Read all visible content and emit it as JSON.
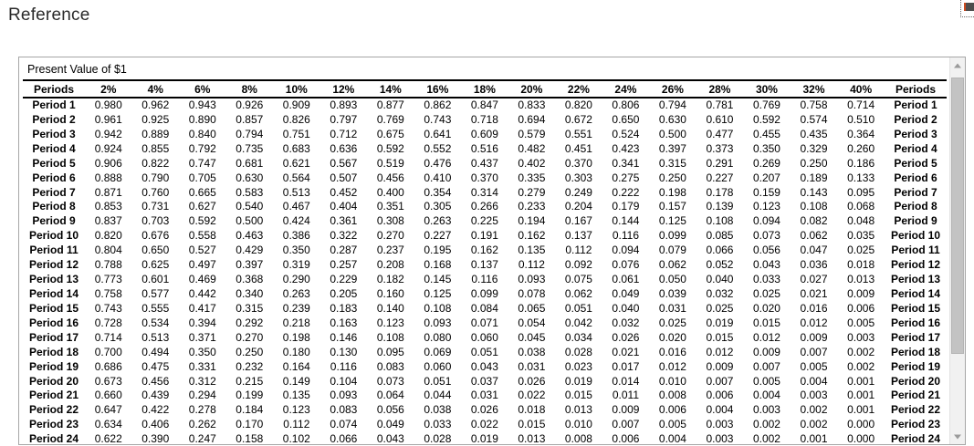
{
  "page": {
    "title": "Reference"
  },
  "colors": {
    "accent_orange": "#cc4a1f",
    "chip_gray": "#4d4d4d",
    "panel_border": "#a6a6a6",
    "scrollbar_track": "#f1f1f1",
    "scrollbar_thumb": "#c3c3c3",
    "text": "#000000"
  },
  "icons": {
    "scroll_up": "triangle-up",
    "scroll_down": "triangle-down"
  },
  "panel": {
    "table": {
      "caption": "Present Value of $1",
      "headers": [
        "Periods",
        "2%",
        "4%",
        "6%",
        "8%",
        "10%",
        "12%",
        "14%",
        "16%",
        "18%",
        "20%",
        "22%",
        "24%",
        "26%",
        "28%",
        "30%",
        "32%",
        "40%",
        "Periods"
      ],
      "rows": [
        {
          "label": "Period 1",
          "values": [
            "0.980",
            "0.962",
            "0.943",
            "0.926",
            "0.909",
            "0.893",
            "0.877",
            "0.862",
            "0.847",
            "0.833",
            "0.820",
            "0.806",
            "0.794",
            "0.781",
            "0.769",
            "0.758",
            "0.714"
          ]
        },
        {
          "label": "Period 2",
          "values": [
            "0.961",
            "0.925",
            "0.890",
            "0.857",
            "0.826",
            "0.797",
            "0.769",
            "0.743",
            "0.718",
            "0.694",
            "0.672",
            "0.650",
            "0.630",
            "0.610",
            "0.592",
            "0.574",
            "0.510"
          ]
        },
        {
          "label": "Period 3",
          "values": [
            "0.942",
            "0.889",
            "0.840",
            "0.794",
            "0.751",
            "0.712",
            "0.675",
            "0.641",
            "0.609",
            "0.579",
            "0.551",
            "0.524",
            "0.500",
            "0.477",
            "0.455",
            "0.435",
            "0.364"
          ]
        },
        {
          "label": "Period 4",
          "values": [
            "0.924",
            "0.855",
            "0.792",
            "0.735",
            "0.683",
            "0.636",
            "0.592",
            "0.552",
            "0.516",
            "0.482",
            "0.451",
            "0.423",
            "0.397",
            "0.373",
            "0.350",
            "0.329",
            "0.260"
          ]
        },
        {
          "label": "Period 5",
          "values": [
            "0.906",
            "0.822",
            "0.747",
            "0.681",
            "0.621",
            "0.567",
            "0.519",
            "0.476",
            "0.437",
            "0.402",
            "0.370",
            "0.341",
            "0.315",
            "0.291",
            "0.269",
            "0.250",
            "0.186"
          ]
        },
        {
          "label": "Period 6",
          "values": [
            "0.888",
            "0.790",
            "0.705",
            "0.630",
            "0.564",
            "0.507",
            "0.456",
            "0.410",
            "0.370",
            "0.335",
            "0.303",
            "0.275",
            "0.250",
            "0.227",
            "0.207",
            "0.189",
            "0.133"
          ]
        },
        {
          "label": "Period 7",
          "values": [
            "0.871",
            "0.760",
            "0.665",
            "0.583",
            "0.513",
            "0.452",
            "0.400",
            "0.354",
            "0.314",
            "0.279",
            "0.249",
            "0.222",
            "0.198",
            "0.178",
            "0.159",
            "0.143",
            "0.095"
          ]
        },
        {
          "label": "Period 8",
          "values": [
            "0.853",
            "0.731",
            "0.627",
            "0.540",
            "0.467",
            "0.404",
            "0.351",
            "0.305",
            "0.266",
            "0.233",
            "0.204",
            "0.179",
            "0.157",
            "0.139",
            "0.123",
            "0.108",
            "0.068"
          ]
        },
        {
          "label": "Period 9",
          "values": [
            "0.837",
            "0.703",
            "0.592",
            "0.500",
            "0.424",
            "0.361",
            "0.308",
            "0.263",
            "0.225",
            "0.194",
            "0.167",
            "0.144",
            "0.125",
            "0.108",
            "0.094",
            "0.082",
            "0.048"
          ]
        },
        {
          "label": "Period 10",
          "values": [
            "0.820",
            "0.676",
            "0.558",
            "0.463",
            "0.386",
            "0.322",
            "0.270",
            "0.227",
            "0.191",
            "0.162",
            "0.137",
            "0.116",
            "0.099",
            "0.085",
            "0.073",
            "0.062",
            "0.035"
          ]
        },
        {
          "label": "Period 11",
          "values": [
            "0.804",
            "0.650",
            "0.527",
            "0.429",
            "0.350",
            "0.287",
            "0.237",
            "0.195",
            "0.162",
            "0.135",
            "0.112",
            "0.094",
            "0.079",
            "0.066",
            "0.056",
            "0.047",
            "0.025"
          ]
        },
        {
          "label": "Period 12",
          "values": [
            "0.788",
            "0.625",
            "0.497",
            "0.397",
            "0.319",
            "0.257",
            "0.208",
            "0.168",
            "0.137",
            "0.112",
            "0.092",
            "0.076",
            "0.062",
            "0.052",
            "0.043",
            "0.036",
            "0.018"
          ]
        },
        {
          "label": "Period 13",
          "values": [
            "0.773",
            "0.601",
            "0.469",
            "0.368",
            "0.290",
            "0.229",
            "0.182",
            "0.145",
            "0.116",
            "0.093",
            "0.075",
            "0.061",
            "0.050",
            "0.040",
            "0.033",
            "0.027",
            "0.013"
          ]
        },
        {
          "label": "Period 14",
          "values": [
            "0.758",
            "0.577",
            "0.442",
            "0.340",
            "0.263",
            "0.205",
            "0.160",
            "0.125",
            "0.099",
            "0.078",
            "0.062",
            "0.049",
            "0.039",
            "0.032",
            "0.025",
            "0.021",
            "0.009"
          ]
        },
        {
          "label": "Period 15",
          "values": [
            "0.743",
            "0.555",
            "0.417",
            "0.315",
            "0.239",
            "0.183",
            "0.140",
            "0.108",
            "0.084",
            "0.065",
            "0.051",
            "0.040",
            "0.031",
            "0.025",
            "0.020",
            "0.016",
            "0.006"
          ]
        },
        {
          "label": "Period 16",
          "values": [
            "0.728",
            "0.534",
            "0.394",
            "0.292",
            "0.218",
            "0.163",
            "0.123",
            "0.093",
            "0.071",
            "0.054",
            "0.042",
            "0.032",
            "0.025",
            "0.019",
            "0.015",
            "0.012",
            "0.005"
          ]
        },
        {
          "label": "Period 17",
          "values": [
            "0.714",
            "0.513",
            "0.371",
            "0.270",
            "0.198",
            "0.146",
            "0.108",
            "0.080",
            "0.060",
            "0.045",
            "0.034",
            "0.026",
            "0.020",
            "0.015",
            "0.012",
            "0.009",
            "0.003"
          ]
        },
        {
          "label": "Period 18",
          "values": [
            "0.700",
            "0.494",
            "0.350",
            "0.250",
            "0.180",
            "0.130",
            "0.095",
            "0.069",
            "0.051",
            "0.038",
            "0.028",
            "0.021",
            "0.016",
            "0.012",
            "0.009",
            "0.007",
            "0.002"
          ]
        },
        {
          "label": "Period 19",
          "values": [
            "0.686",
            "0.475",
            "0.331",
            "0.232",
            "0.164",
            "0.116",
            "0.083",
            "0.060",
            "0.043",
            "0.031",
            "0.023",
            "0.017",
            "0.012",
            "0.009",
            "0.007",
            "0.005",
            "0.002"
          ]
        },
        {
          "label": "Period 20",
          "values": [
            "0.673",
            "0.456",
            "0.312",
            "0.215",
            "0.149",
            "0.104",
            "0.073",
            "0.051",
            "0.037",
            "0.026",
            "0.019",
            "0.014",
            "0.010",
            "0.007",
            "0.005",
            "0.004",
            "0.001"
          ]
        },
        {
          "label": "Period 21",
          "values": [
            "0.660",
            "0.439",
            "0.294",
            "0.199",
            "0.135",
            "0.093",
            "0.064",
            "0.044",
            "0.031",
            "0.022",
            "0.015",
            "0.011",
            "0.008",
            "0.006",
            "0.004",
            "0.003",
            "0.001"
          ]
        },
        {
          "label": "Period 22",
          "values": [
            "0.647",
            "0.422",
            "0.278",
            "0.184",
            "0.123",
            "0.083",
            "0.056",
            "0.038",
            "0.026",
            "0.018",
            "0.013",
            "0.009",
            "0.006",
            "0.004",
            "0.003",
            "0.002",
            "0.001"
          ]
        },
        {
          "label": "Period 23",
          "values": [
            "0.634",
            "0.406",
            "0.262",
            "0.170",
            "0.112",
            "0.074",
            "0.049",
            "0.033",
            "0.022",
            "0.015",
            "0.010",
            "0.007",
            "0.005",
            "0.003",
            "0.002",
            "0.002",
            "0.000"
          ]
        },
        {
          "label": "Period 24",
          "values": [
            "0.622",
            "0.390",
            "0.247",
            "0.158",
            "0.102",
            "0.066",
            "0.043",
            "0.028",
            "0.019",
            "0.013",
            "0.008",
            "0.006",
            "0.004",
            "0.003",
            "0.002",
            "0.001",
            "0.000"
          ]
        }
      ]
    }
  }
}
